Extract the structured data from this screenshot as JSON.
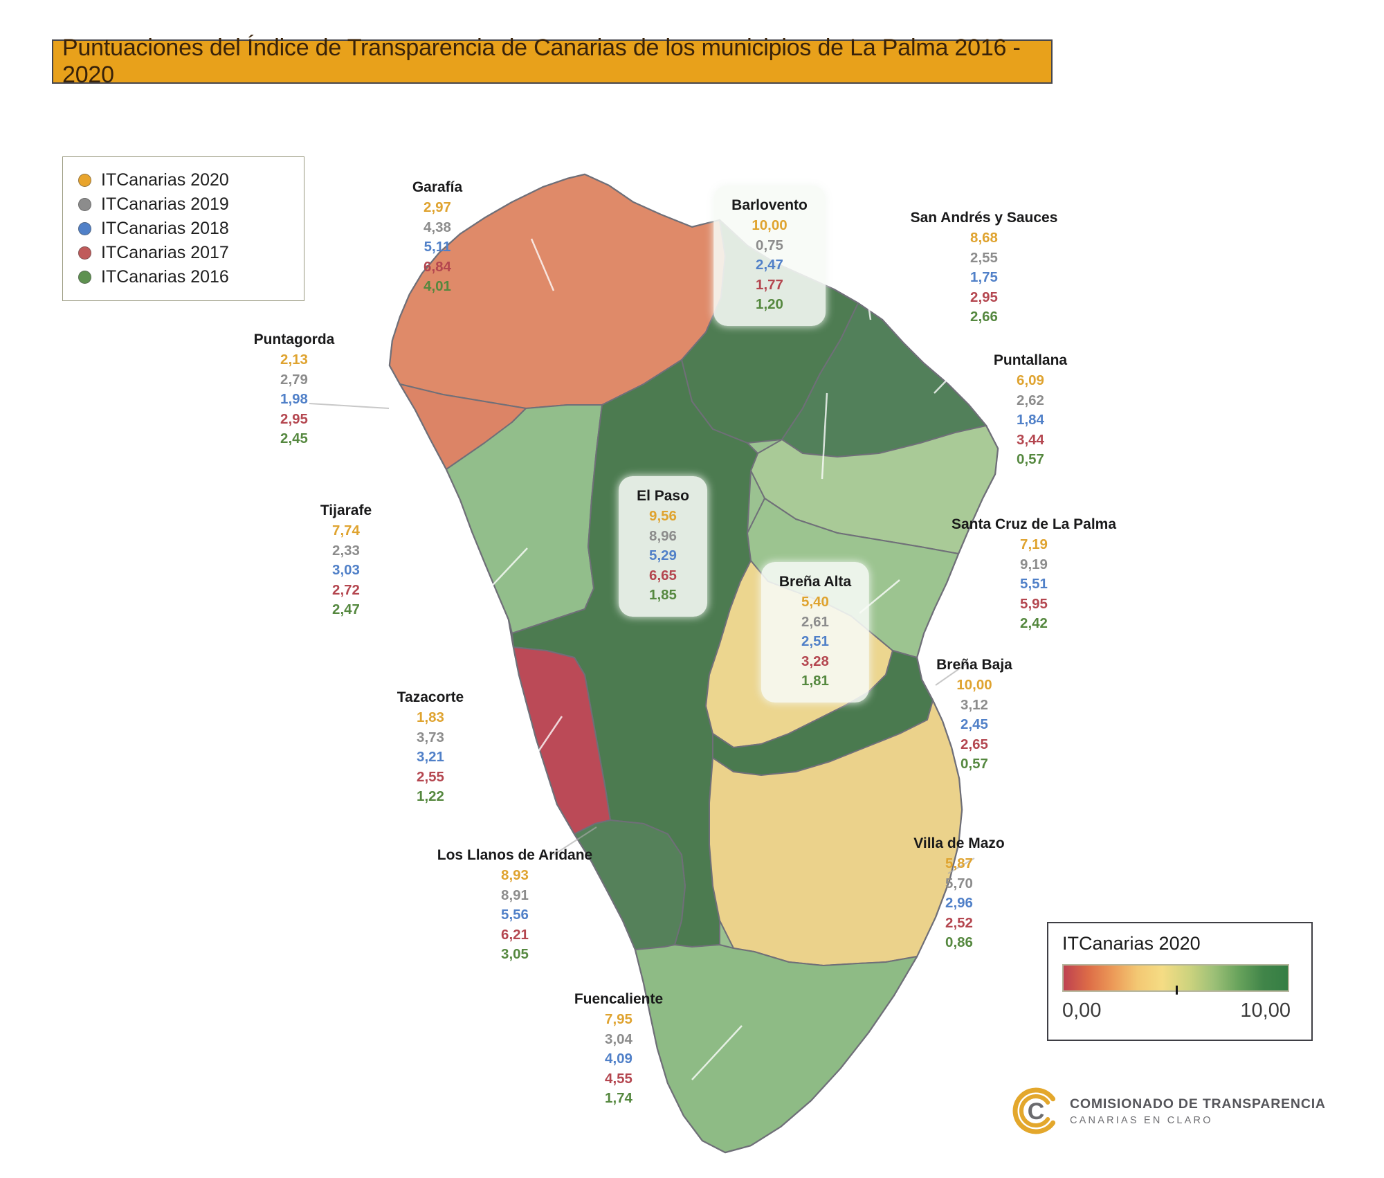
{
  "title": "Puntuaciones del Índice de Transparencia de Canarias de los municipios de La Palma 2016 - 2020",
  "colors": {
    "title_bg": "#E8A11B",
    "years": [
      "#DFA32F",
      "#8C8C8C",
      "#5080C8",
      "#B4464F",
      "#55883F"
    ]
  },
  "legend": {
    "items": [
      {
        "label": "ITCanarias 2020",
        "color": "#E8A42C"
      },
      {
        "label": "ITCanarias 2019",
        "color": "#8C8C8C"
      },
      {
        "label": "ITCanarias 2018",
        "color": "#5080C8"
      },
      {
        "label": "ITCanarias 2017",
        "color": "#C05A5A"
      },
      {
        "label": "ITCanarias 2016",
        "color": "#5E9150"
      }
    ]
  },
  "chart_data": {
    "type": "choropleth-map",
    "region": "La Palma (Canarias)",
    "metric": "Índice de Transparencia de Canarias (ITCanarias)",
    "value_range": [
      0,
      10
    ],
    "series_years": [
      "2020",
      "2019",
      "2018",
      "2017",
      "2016"
    ],
    "municipalities": [
      {
        "id": "garafia",
        "name": "Garafía",
        "values": [
          "2,97",
          "4,38",
          "5,11",
          "6,84",
          "4,01"
        ],
        "fill": "#DF8A69",
        "boxed": false
      },
      {
        "id": "barlovento",
        "name": "Barlovento",
        "values": [
          "10,00",
          "0,75",
          "2,47",
          "1,77",
          "1,20"
        ],
        "fill": "#4E7C52",
        "boxed": true
      },
      {
        "id": "sanandres",
        "name": "San Andrés y Sauces",
        "values": [
          "8,68",
          "2,55",
          "1,75",
          "2,95",
          "2,66"
        ],
        "fill": "#52805A",
        "boxed": false
      },
      {
        "id": "puntagorda",
        "name": "Puntagorda",
        "values": [
          "2,13",
          "2,79",
          "1,98",
          "2,95",
          "2,45"
        ],
        "fill": "#DC8466",
        "boxed": false
      },
      {
        "id": "puntallana",
        "name": "Puntallana",
        "values": [
          "6,09",
          "2,62",
          "1,84",
          "3,44",
          "0,57"
        ],
        "fill": "#A9CA97",
        "boxed": false
      },
      {
        "id": "tijarafe",
        "name": "Tijarafe",
        "values": [
          "7,74",
          "2,33",
          "3,03",
          "2,72",
          "2,47"
        ],
        "fill": "#92BE8B",
        "boxed": false
      },
      {
        "id": "elpaso",
        "name": "El Paso",
        "values": [
          "9,56",
          "8,96",
          "5,29",
          "6,65",
          "1,85"
        ],
        "fill": "#4C7B50",
        "boxed": true
      },
      {
        "id": "brenaalta",
        "name": "Breña Alta",
        "values": [
          "5,40",
          "2,61",
          "2,51",
          "3,28",
          "1,81"
        ],
        "fill": "#ECD68F",
        "boxed": true
      },
      {
        "id": "santacruz",
        "name": "Santa Cruz de La Palma",
        "values": [
          "7,19",
          "9,19",
          "5,51",
          "5,95",
          "2,42"
        ],
        "fill": "#9CC490",
        "boxed": false
      },
      {
        "id": "brenabaja",
        "name": "Breña Baja",
        "values": [
          "10,00",
          "3,12",
          "2,45",
          "2,65",
          "0,57"
        ],
        "fill": "#4A7A4F",
        "boxed": false
      },
      {
        "id": "tazacorte",
        "name": "Tazacorte",
        "values": [
          "1,83",
          "3,73",
          "3,21",
          "2,55",
          "1,22"
        ],
        "fill": "#BB4A57",
        "boxed": false
      },
      {
        "id": "losllanos",
        "name": "Los Llanos de Aridane",
        "values": [
          "8,93",
          "8,91",
          "5,56",
          "6,21",
          "3,05"
        ],
        "fill": "#55815A",
        "boxed": false
      },
      {
        "id": "mazo",
        "name": "Villa de Mazo",
        "values": [
          "5,87",
          "5,70",
          "2,96",
          "2,52",
          "0,86"
        ],
        "fill": "#EBD28B",
        "boxed": false
      },
      {
        "id": "fuencaliente",
        "name": "Fuencaliente",
        "values": [
          "7,95",
          "3,04",
          "4,09",
          "4,55",
          "1,74"
        ],
        "fill": "#8EBB85",
        "boxed": false
      }
    ]
  },
  "color_scale": {
    "title": "ITCanarias 2020",
    "min_label": "0,00",
    "max_label": "10,00",
    "stops": [
      "#BE4150",
      "#DD6C47",
      "#EC9A58",
      "#F3C873",
      "#F5DC84",
      "#CDD37E",
      "#9DC077",
      "#68A35C",
      "#418549",
      "#357E44"
    ]
  },
  "logo": {
    "letter": "C",
    "line1": "COMISIONADO DE TRANSPARENCIA",
    "line2": "CANARIAS EN CLARO"
  }
}
